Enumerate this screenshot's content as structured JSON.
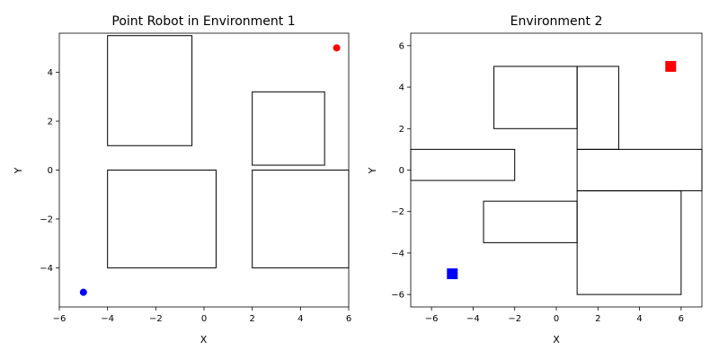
{
  "chart_data": [
    {
      "type": "scatter",
      "title": "Point Robot in Environment 1",
      "xlabel": "X",
      "ylabel": "Y",
      "xlim": [
        -6,
        6
      ],
      "ylim": [
        -5.6,
        5.6
      ],
      "xticks": [
        -6,
        -4,
        -2,
        0,
        2,
        4,
        6
      ],
      "yticks": [
        -4,
        -2,
        0,
        2,
        4
      ],
      "grid": false,
      "obstacles": [
        {
          "x": -4,
          "y": 1,
          "w": 3.5,
          "h": 4.5
        },
        {
          "x": -4,
          "y": -4,
          "w": 4.5,
          "h": 4
        },
        {
          "x": 2,
          "y": 0.2,
          "w": 3,
          "h": 3
        },
        {
          "x": 2,
          "y": -4,
          "w": 4,
          "h": 4
        }
      ],
      "points": [
        {
          "x": -5,
          "y": -5,
          "color": "#0000ff",
          "marker": "circle"
        },
        {
          "x": 5.5,
          "y": 5,
          "color": "#ff0000",
          "marker": "circle"
        }
      ]
    },
    {
      "type": "scatter",
      "title": "Environment 2",
      "xlabel": "X",
      "ylabel": "Y",
      "xlim": [
        -7,
        7
      ],
      "ylim": [
        -6.6,
        6.6
      ],
      "xticks": [
        -6,
        -4,
        -2,
        0,
        2,
        4,
        6
      ],
      "yticks": [
        -6,
        -4,
        -2,
        0,
        2,
        4,
        6
      ],
      "grid": false,
      "obstacles": [
        {
          "x": -3,
          "y": 2,
          "w": 4,
          "h": 3
        },
        {
          "x": 1,
          "y": 1,
          "w": 2,
          "h": 4
        },
        {
          "x": -7,
          "y": -0.5,
          "w": 5,
          "h": 1.5
        },
        {
          "x": 1,
          "y": -1,
          "w": 6,
          "h": 2
        },
        {
          "x": -3.5,
          "y": -3.5,
          "w": 4.5,
          "h": 2
        },
        {
          "x": 1,
          "y": -6,
          "w": 5,
          "h": 5
        }
      ],
      "points": [
        {
          "x": -5,
          "y": -5,
          "color": "#0000ff",
          "marker": "square"
        },
        {
          "x": 5.5,
          "y": 5,
          "color": "#ff0000",
          "marker": "square"
        }
      ]
    }
  ]
}
